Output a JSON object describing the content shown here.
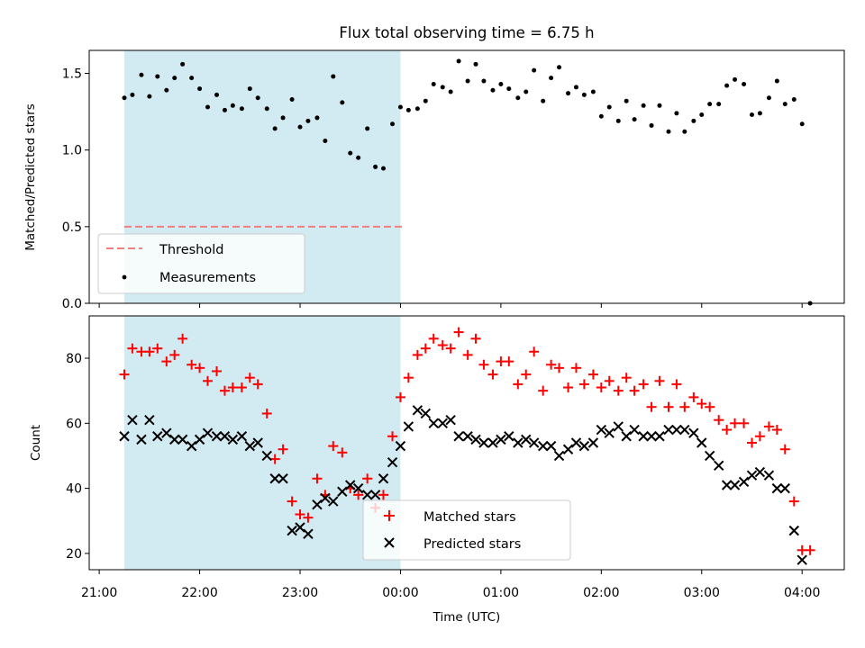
{
  "chart_data": [
    {
      "type": "scatter",
      "title": "Flux total observing time = 6.75 h",
      "ylabel": "Matched/Predicted stars",
      "xlabel": "",
      "ylim": [
        0,
        1.65
      ],
      "yticks": [
        "0.0",
        "0.5",
        "1.0",
        "1.5"
      ],
      "shaded_span": [
        21.25,
        24.0
      ],
      "shade_color": "#add8e6",
      "threshold": {
        "name": "Threshold",
        "value": 0.5,
        "x_range": [
          21.25,
          24.05
        ],
        "color": "#f08080",
        "style": "dashed"
      },
      "legend": {
        "position": "lower-left",
        "entries": [
          "Threshold",
          "Measurements"
        ]
      },
      "series": [
        {
          "name": "Measurements",
          "marker": "dot",
          "color": "#000000",
          "x": [
            21.25,
            21.33,
            21.42,
            21.5,
            21.58,
            21.67,
            21.75,
            21.83,
            21.92,
            22.0,
            22.08,
            22.17,
            22.25,
            22.33,
            22.42,
            22.5,
            22.58,
            22.67,
            22.75,
            22.83,
            22.92,
            23.0,
            23.08,
            23.17,
            23.25,
            23.33,
            23.42,
            23.5,
            23.58,
            23.67,
            23.75,
            23.83,
            23.92,
            24.0,
            24.08,
            24.17,
            24.25,
            24.33,
            24.42,
            24.5,
            24.58,
            24.67,
            24.75,
            24.83,
            24.92,
            25.0,
            25.08,
            25.17,
            25.25,
            25.33,
            25.42,
            25.5,
            25.58,
            25.67,
            25.75,
            25.83,
            25.92,
            26.0,
            26.08,
            26.17,
            26.25,
            26.33,
            26.42,
            26.5,
            26.58,
            26.67,
            26.75,
            26.83,
            26.92,
            27.0,
            27.08,
            27.17,
            27.25,
            27.33,
            27.42,
            27.5,
            27.58,
            27.67,
            27.75,
            27.83,
            27.92,
            28.0,
            28.08
          ],
          "y": [
            1.34,
            1.36,
            1.49,
            1.35,
            1.48,
            1.39,
            1.47,
            1.56,
            1.47,
            1.4,
            1.28,
            1.36,
            1.26,
            1.29,
            1.27,
            1.4,
            1.34,
            1.27,
            1.14,
            1.21,
            1.33,
            1.15,
            1.19,
            1.21,
            1.06,
            1.48,
            1.31,
            0.98,
            0.95,
            1.14,
            0.89,
            0.88,
            1.17,
            1.28,
            1.26,
            1.27,
            1.32,
            1.43,
            1.41,
            1.38,
            1.58,
            1.45,
            1.56,
            1.45,
            1.39,
            1.43,
            1.4,
            1.34,
            1.38,
            1.52,
            1.32,
            1.47,
            1.54,
            1.37,
            1.41,
            1.36,
            1.38,
            1.22,
            1.28,
            1.19,
            1.32,
            1.2,
            1.29,
            1.16,
            1.29,
            1.12,
            1.24,
            1.12,
            1.19,
            1.23,
            1.3,
            1.3,
            1.42,
            1.46,
            1.43,
            1.23,
            1.24,
            1.34,
            1.45,
            1.3,
            1.33,
            1.17,
            0.0
          ]
        }
      ]
    },
    {
      "type": "scatter",
      "title": "",
      "ylabel": "Count",
      "xlabel": "Time (UTC)",
      "ylim": [
        15,
        93
      ],
      "yticks": [
        "20",
        "40",
        "60",
        "80"
      ],
      "xlim": [
        20.9,
        28.42
      ],
      "xticks": [
        "21:00",
        "22:00",
        "23:00",
        "00:00",
        "01:00",
        "02:00",
        "03:00",
        "04:00"
      ],
      "shaded_span": [
        21.25,
        24.0
      ],
      "shade_color": "#add8e6",
      "legend": {
        "position": "lower-center",
        "entries": [
          "Matched stars",
          "Predicted stars"
        ]
      },
      "series": [
        {
          "name": "Matched stars",
          "marker": "plus",
          "color": "#ff0000",
          "x": [
            21.25,
            21.33,
            21.42,
            21.5,
            21.58,
            21.67,
            21.75,
            21.83,
            21.92,
            22.0,
            22.08,
            22.17,
            22.25,
            22.33,
            22.42,
            22.5,
            22.58,
            22.67,
            22.75,
            22.83,
            22.92,
            23.0,
            23.08,
            23.17,
            23.25,
            23.33,
            23.42,
            23.5,
            23.58,
            23.67,
            23.75,
            23.83,
            23.92,
            24.0,
            24.08,
            24.17,
            24.25,
            24.33,
            24.42,
            24.5,
            24.58,
            24.67,
            24.75,
            24.83,
            24.92,
            25.0,
            25.08,
            25.17,
            25.25,
            25.33,
            25.42,
            25.5,
            25.58,
            25.67,
            25.75,
            25.83,
            25.92,
            26.0,
            26.08,
            26.17,
            26.25,
            26.33,
            26.42,
            26.5,
            26.58,
            26.67,
            26.75,
            26.83,
            26.92,
            27.0,
            27.08,
            27.17,
            27.25,
            27.33,
            27.42,
            27.5,
            27.58,
            27.67,
            27.75,
            27.83,
            27.92,
            28.0,
            28.08
          ],
          "y": [
            75,
            83,
            82,
            82,
            83,
            79,
            81,
            86,
            78,
            77,
            73,
            76,
            70,
            71,
            71,
            74,
            72,
            63,
            49,
            52,
            36,
            32,
            31,
            43,
            38,
            53,
            51,
            40,
            38,
            43,
            34,
            38,
            56,
            68,
            74,
            81,
            83,
            86,
            84,
            83,
            88,
            81,
            86,
            78,
            75,
            79,
            79,
            72,
            75,
            82,
            70,
            78,
            77,
            71,
            77,
            72,
            75,
            71,
            73,
            70,
            74,
            70,
            72,
            65,
            73,
            65,
            72,
            65,
            68,
            66,
            65,
            61,
            58,
            60,
            60,
            54,
            56,
            59,
            58,
            52,
            36,
            21,
            21
          ]
        },
        {
          "name": "Predicted stars",
          "marker": "x",
          "color": "#000000",
          "x": [
            21.25,
            21.33,
            21.42,
            21.5,
            21.58,
            21.67,
            21.75,
            21.83,
            21.92,
            22.0,
            22.08,
            22.17,
            22.25,
            22.33,
            22.42,
            22.5,
            22.58,
            22.67,
            22.75,
            22.83,
            22.92,
            23.0,
            23.08,
            23.17,
            23.25,
            23.33,
            23.42,
            23.5,
            23.58,
            23.67,
            23.75,
            23.83,
            23.92,
            24.0,
            24.08,
            24.17,
            24.25,
            24.33,
            24.42,
            24.5,
            24.58,
            24.67,
            24.75,
            24.83,
            24.92,
            25.0,
            25.08,
            25.17,
            25.25,
            25.33,
            25.42,
            25.5,
            25.58,
            25.67,
            25.75,
            25.83,
            25.92,
            26.0,
            26.08,
            26.17,
            26.25,
            26.33,
            26.42,
            26.5,
            26.58,
            26.67,
            26.75,
            26.83,
            26.92,
            27.0,
            27.08,
            27.17,
            27.25,
            27.33,
            27.42,
            27.5,
            27.58,
            27.67,
            27.75,
            27.83,
            27.92,
            28.0
          ],
          "y": [
            56,
            61,
            55,
            61,
            56,
            57,
            55,
            55,
            53,
            55,
            57,
            56,
            56,
            55,
            56,
            53,
            54,
            50,
            43,
            43,
            27,
            28,
            26,
            35,
            37,
            36,
            39,
            41,
            40,
            38,
            38,
            43,
            48,
            53,
            59,
            64,
            63,
            60,
            60,
            61,
            56,
            56,
            55,
            54,
            54,
            55,
            56,
            54,
            55,
            54,
            53,
            53,
            50,
            52,
            54,
            53,
            54,
            58,
            57,
            59,
            56,
            58,
            56,
            56,
            56,
            58,
            58,
            58,
            57,
            54,
            50,
            47,
            41,
            41,
            42,
            44,
            45,
            44,
            40,
            40,
            27,
            18
          ]
        }
      ]
    }
  ]
}
